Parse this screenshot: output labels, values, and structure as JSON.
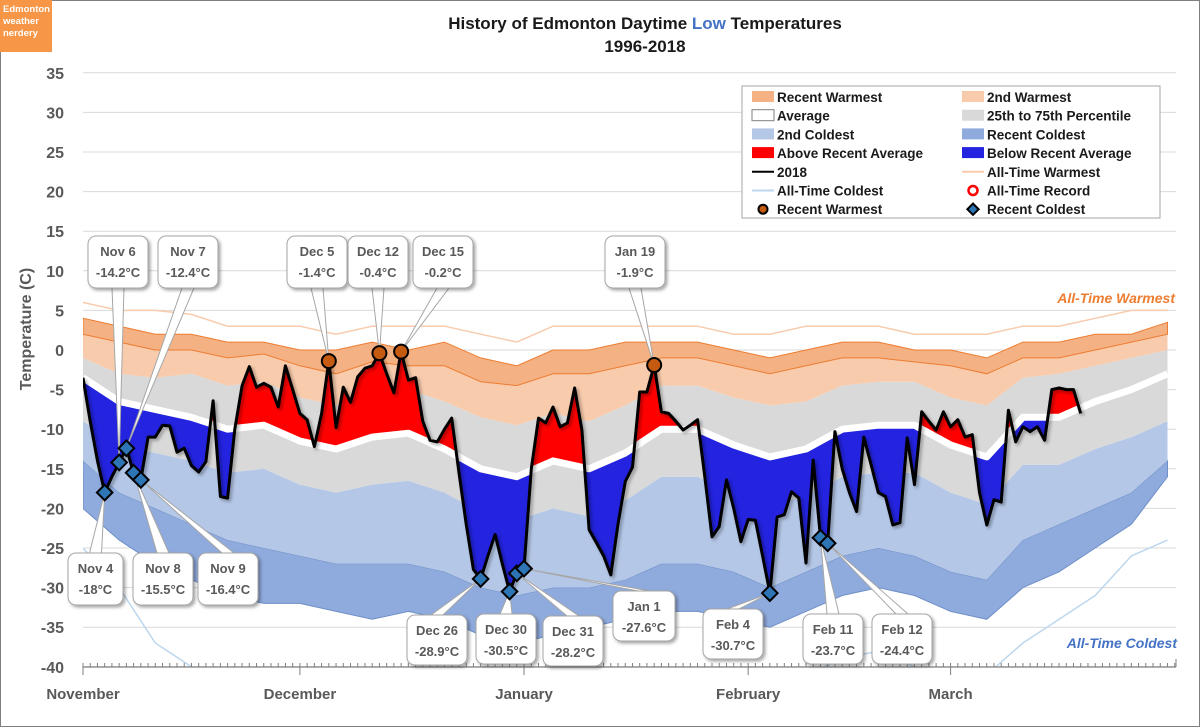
{
  "logo": {
    "line1": "Edmonton",
    "line2": "weather",
    "line3": "nerdery"
  },
  "chart_data": {
    "type": "area",
    "title_prefix": "History of Edmonton Daytime",
    "title_highlight": "Low",
    "title_suffix": "Temperatures",
    "subtitle": "1996-2018",
    "ylabel": "Temperature (C)",
    "ylim": [
      -40,
      35
    ],
    "yticks": [
      35,
      30,
      25,
      20,
      15,
      10,
      5,
      0,
      -5,
      -10,
      -15,
      -20,
      -25,
      -30,
      -35,
      -40
    ],
    "x_unit": "days since Nov 1",
    "xlim": [
      0,
      151
    ],
    "months": [
      {
        "label": "November",
        "day": 0
      },
      {
        "label": "December",
        "day": 30
      },
      {
        "label": "January",
        "day": 61
      },
      {
        "label": "February",
        "day": 92
      },
      {
        "label": "March",
        "day": 120
      }
    ],
    "grid": true,
    "colors": {
      "recent_warmest": "#F4B183",
      "second_warmest": "#F8CBAD",
      "percentile": "#D9D9D9",
      "second_coldest": "#B4C7E7",
      "recent_coldest": "#8FAADC",
      "above": "#FF0000",
      "below": "#2323E0",
      "line_2018": "#000000",
      "all_time_warmest": "#F8CBAD",
      "all_time_coldest": "#BDD7EE",
      "warm_marker": "#C55A11",
      "cold_marker": "#2E75B6",
      "warm_text": "#ED7D31",
      "cold_text": "#4472C4"
    },
    "band_days": [
      0,
      5,
      10,
      15,
      20,
      25,
      30,
      35,
      40,
      45,
      50,
      55,
      60,
      65,
      70,
      75,
      80,
      85,
      90,
      95,
      100,
      105,
      110,
      115,
      120,
      125,
      130,
      135,
      140,
      145,
      150
    ],
    "bands": {
      "all_time_warmest": [
        6,
        5,
        5,
        4.5,
        3,
        3,
        3,
        2,
        3,
        3,
        3,
        2,
        1,
        3,
        3,
        3,
        3,
        3,
        2,
        2,
        3,
        3,
        3,
        2,
        2,
        2,
        3,
        3,
        4,
        5,
        5
      ],
      "recent_warmest": [
        4,
        3,
        2,
        2,
        1,
        1,
        0,
        0,
        1,
        0,
        1,
        -1,
        -2,
        0,
        0,
        1,
        1,
        1,
        0,
        -1,
        0,
        1,
        1,
        0,
        0,
        -1,
        1,
        1,
        2,
        2,
        3.5
      ],
      "second_warmest": [
        2,
        1,
        0,
        0,
        -1,
        -0.5,
        -2,
        -3,
        -1.5,
        -2,
        -2,
        -4,
        -4.5,
        -3,
        -3,
        -2,
        -1,
        -1,
        -2,
        -3,
        -2,
        -1,
        -1,
        -1.5,
        -2,
        -3,
        -1,
        -1,
        0,
        1,
        2
      ],
      "p75": [
        -1,
        -3,
        -3.5,
        -3,
        -4.5,
        -4,
        -6,
        -7,
        -5.5,
        -5,
        -6.5,
        -8.5,
        -9.5,
        -8,
        -9,
        -7,
        -4.5,
        -4.5,
        -6,
        -7,
        -6.5,
        -4.5,
        -4,
        -4,
        -6,
        -7,
        -3.5,
        -3,
        -2,
        -1,
        0
      ],
      "average": [
        -3.5,
        -6.5,
        -7.5,
        -8.5,
        -10,
        -9.5,
        -11.5,
        -12.5,
        -11,
        -10.5,
        -12.5,
        -15,
        -16,
        -14,
        -15,
        -13,
        -10,
        -10,
        -12,
        -13.5,
        -12.5,
        -10,
        -9.5,
        -9.5,
        -12,
        -13.5,
        -8.5,
        -8.5,
        -6.5,
        -5,
        -3
      ],
      "p25": [
        -9,
        -12,
        -13,
        -14,
        -15.5,
        -15,
        -17,
        -18,
        -17,
        -16.5,
        -18,
        -20.5,
        -21.5,
        -20,
        -21,
        -19,
        -16,
        -16,
        -18,
        -19.5,
        -18.5,
        -16,
        -15.5,
        -15.5,
        -18,
        -19.5,
        -14.5,
        -14.5,
        -12.5,
        -11,
        -9
      ],
      "second_coldest": [
        -14,
        -18,
        -20,
        -22,
        -24,
        -25,
        -26,
        -27,
        -27,
        -27,
        -28,
        -30,
        -31,
        -30,
        -30,
        -29,
        -27,
        -27,
        -28,
        -30,
        -28,
        -26,
        -25,
        -26,
        -28,
        -29,
        -24,
        -22,
        -20,
        -18,
        -14
      ],
      "recent_coldest": [
        -20,
        -24,
        -27,
        -29,
        -31,
        -32,
        -32,
        -33,
        -34,
        -33,
        -34,
        -36,
        -37,
        -36,
        -35,
        -34,
        -33,
        -33,
        -34,
        -35,
        -33,
        -31,
        -30,
        -31,
        -33,
        -34,
        -30,
        -28,
        -25,
        -22,
        -16
      ],
      "all_time_coldest": [
        -25,
        -30,
        -37,
        -40,
        -42,
        -40,
        -44,
        -45,
        -43,
        -41,
        -44,
        -46,
        -47,
        -45,
        -44,
        -43,
        -42,
        -40,
        -43,
        -44,
        -41,
        -39,
        -38,
        -40,
        -42,
        -41,
        -37,
        -34,
        -31,
        -26,
        -24
      ]
    },
    "series_2018": {
      "name": "2018",
      "start_day": 0,
      "values": [
        -3.5,
        -9,
        -14,
        -18,
        -16,
        -14.2,
        -12.4,
        -15.5,
        -16.4,
        -11,
        -11,
        -9.5,
        -9.6,
        -12.9,
        -12.4,
        -14.6,
        -15.4,
        -14.1,
        -6.4,
        -18.5,
        -18.7,
        -10,
        -4.5,
        -2.1,
        -4.7,
        -4.2,
        -4.7,
        -7.2,
        -2,
        -5,
        -8,
        -8.8,
        -12.2,
        -8,
        -1.4,
        -9.8,
        -4.7,
        -6.6,
        -3.4,
        -2.3,
        -2,
        -0.4,
        -3,
        -5.4,
        -0.2,
        -3.8,
        -3.5,
        -9,
        -11.4,
        -11.6,
        -10,
        -8.6,
        -15.5,
        -22,
        -27.7,
        -28.9,
        -26,
        -23.3,
        -27,
        -30.5,
        -28.2,
        -27.6,
        -15,
        -8.6,
        -9.2,
        -7.2,
        -9.7,
        -9.2,
        -4.8,
        -10.1,
        -22.7,
        -24.3,
        -26,
        -28.4,
        -22,
        -16.6,
        -14.8,
        -5.3,
        -5.3,
        -1.9,
        -7.8,
        -8,
        -9,
        -10.1,
        -9.5,
        -8.8,
        -16,
        -23.6,
        -22.3,
        -16.4,
        -20,
        -24.2,
        -21.4,
        -21.5,
        -26,
        -30.7,
        -21.1,
        -20.8,
        -17.9,
        -18.7,
        -26.9,
        -13.9,
        -23.7,
        -24.4,
        -10.3,
        -15,
        -18,
        -20.4,
        -11,
        -14.5,
        -18,
        -18.5,
        -22.1,
        -21.8,
        -11.1,
        -17,
        -7.8,
        -9,
        -10.1,
        -7.8,
        -9.7,
        -8.8,
        -11,
        -10.7,
        -18,
        -22.1,
        -18.9,
        -19.2,
        -7.6,
        -11.6,
        -9.7,
        -10.3,
        -9.7,
        -11.4,
        -5,
        -4.8,
        -5,
        -5,
        -8
      ]
    },
    "recent_warmest_markers": [
      {
        "label": "Dec 5",
        "value_text": "-1.4°C",
        "day": 34,
        "value": -1.4
      },
      {
        "label": "Dec 12",
        "value_text": "-0.4°C",
        "day": 41,
        "value": -0.4
      },
      {
        "label": "Dec 15",
        "value_text": "-0.2°C",
        "day": 44,
        "value": -0.2
      },
      {
        "label": "Jan 19",
        "value_text": "-1.9°C",
        "day": 79,
        "value": -1.9
      }
    ],
    "recent_coldest_markers": [
      {
        "label": "Nov 4",
        "value_text": "-18°C",
        "day": 3,
        "value": -18
      },
      {
        "label": "Nov 6",
        "value_text": "-14.2°C",
        "day": 5,
        "value": -14.2
      },
      {
        "label": "Nov 7",
        "value_text": "-12.4°C",
        "day": 6,
        "value": -12.4
      },
      {
        "label": "Nov 8",
        "value_text": "-15.5°C",
        "day": 7,
        "value": -15.5
      },
      {
        "label": "Nov 9",
        "value_text": "-16.4°C",
        "day": 8,
        "value": -16.4
      },
      {
        "label": "Dec 26",
        "value_text": "-28.9°C",
        "day": 55,
        "value": -28.9
      },
      {
        "label": "Dec 30",
        "value_text": "-30.5°C",
        "day": 59,
        "value": -30.5
      },
      {
        "label": "Dec 31",
        "value_text": "-28.2°C",
        "day": 60,
        "value": -28.2
      },
      {
        "label": "Jan 1",
        "value_text": "-27.6°C",
        "day": 61,
        "value": -27.6
      },
      {
        "label": "Feb 4",
        "value_text": "-30.7°C",
        "day": 95,
        "value": -30.7
      },
      {
        "label": "Feb 11",
        "value_text": "-23.7°C",
        "day": 102,
        "value": -23.7
      },
      {
        "label": "Feb 12",
        "value_text": "-24.4°C",
        "day": 103,
        "value": -24.4
      }
    ],
    "annotations": {
      "warm": "All-Time Warmest",
      "cold": "All-Time Coldest"
    },
    "legend": {
      "placement": "top-right",
      "entries": [
        {
          "label": "Recent Warmest",
          "swatch": "fill",
          "color": "#F4B183"
        },
        {
          "label": "2nd Warmest",
          "swatch": "fill",
          "color": "#F8CBAD"
        },
        {
          "label": "Average",
          "swatch": "outline",
          "color": "#FFFFFF"
        },
        {
          "label": "25th to 75th Percentile",
          "swatch": "fill",
          "color": "#D9D9D9"
        },
        {
          "label": "2nd Coldest",
          "swatch": "fill",
          "color": "#B4C7E7"
        },
        {
          "label": "Recent Coldest",
          "swatch": "fill",
          "color": "#8FAADC"
        },
        {
          "label": "Above Recent Average",
          "swatch": "fill",
          "color": "#FF0000"
        },
        {
          "label": "Below Recent Average",
          "swatch": "fill",
          "color": "#2323E0"
        },
        {
          "label": "2018",
          "swatch": "line",
          "color": "#000000"
        },
        {
          "label": "All-Time Warmest",
          "swatch": "line",
          "color": "#F8CBAD"
        },
        {
          "label": "All-Time Coldest",
          "swatch": "line",
          "color": "#BDD7EE"
        },
        {
          "label": "All-Time Record",
          "swatch": "ring",
          "color": "#FF0000"
        },
        {
          "label": "Recent Warmest",
          "swatch": "circle",
          "color": "#C55A11"
        },
        {
          "label": "Recent Coldest",
          "swatch": "diamond",
          "color": "#2E75B6"
        }
      ]
    }
  }
}
